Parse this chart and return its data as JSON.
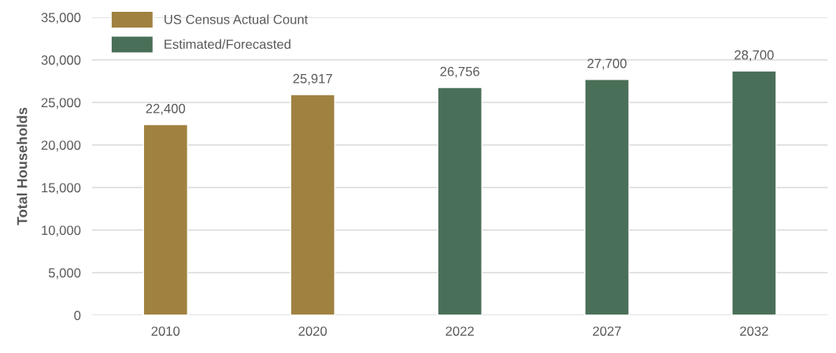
{
  "chart_data": {
    "type": "bar",
    "ylabel": "Total Households",
    "categories": [
      "2010",
      "2020",
      "2022",
      "2027",
      "2032"
    ],
    "series": [
      {
        "name": "US Census Actual Count",
        "color": "#a08140",
        "values": [
          22400,
          25917,
          null,
          null,
          null
        ],
        "value_labels": [
          "22,400",
          "25,917",
          null,
          null,
          null
        ]
      },
      {
        "name": "Estimated/Forecasted",
        "color": "#4a6f58",
        "values": [
          null,
          null,
          26756,
          27700,
          28700
        ],
        "value_labels": [
          null,
          null,
          "26,756",
          "27,700",
          "28,700"
        ]
      }
    ],
    "ylim": [
      0,
      35000
    ],
    "yticks": [
      0,
      {
        "value": 5000,
        "label": "5,000"
      },
      {
        "value": 10000,
        "label": "10,000"
      },
      {
        "value": 15000,
        "label": "15,000"
      },
      {
        "value": 20000,
        "label": "20,000"
      },
      {
        "value": 25000,
        "label": "25,000"
      },
      {
        "value": 30000,
        "label": "30,000"
      },
      {
        "value": 35000,
        "label": "35,000"
      }
    ],
    "grid": "y",
    "legend": "top left"
  }
}
